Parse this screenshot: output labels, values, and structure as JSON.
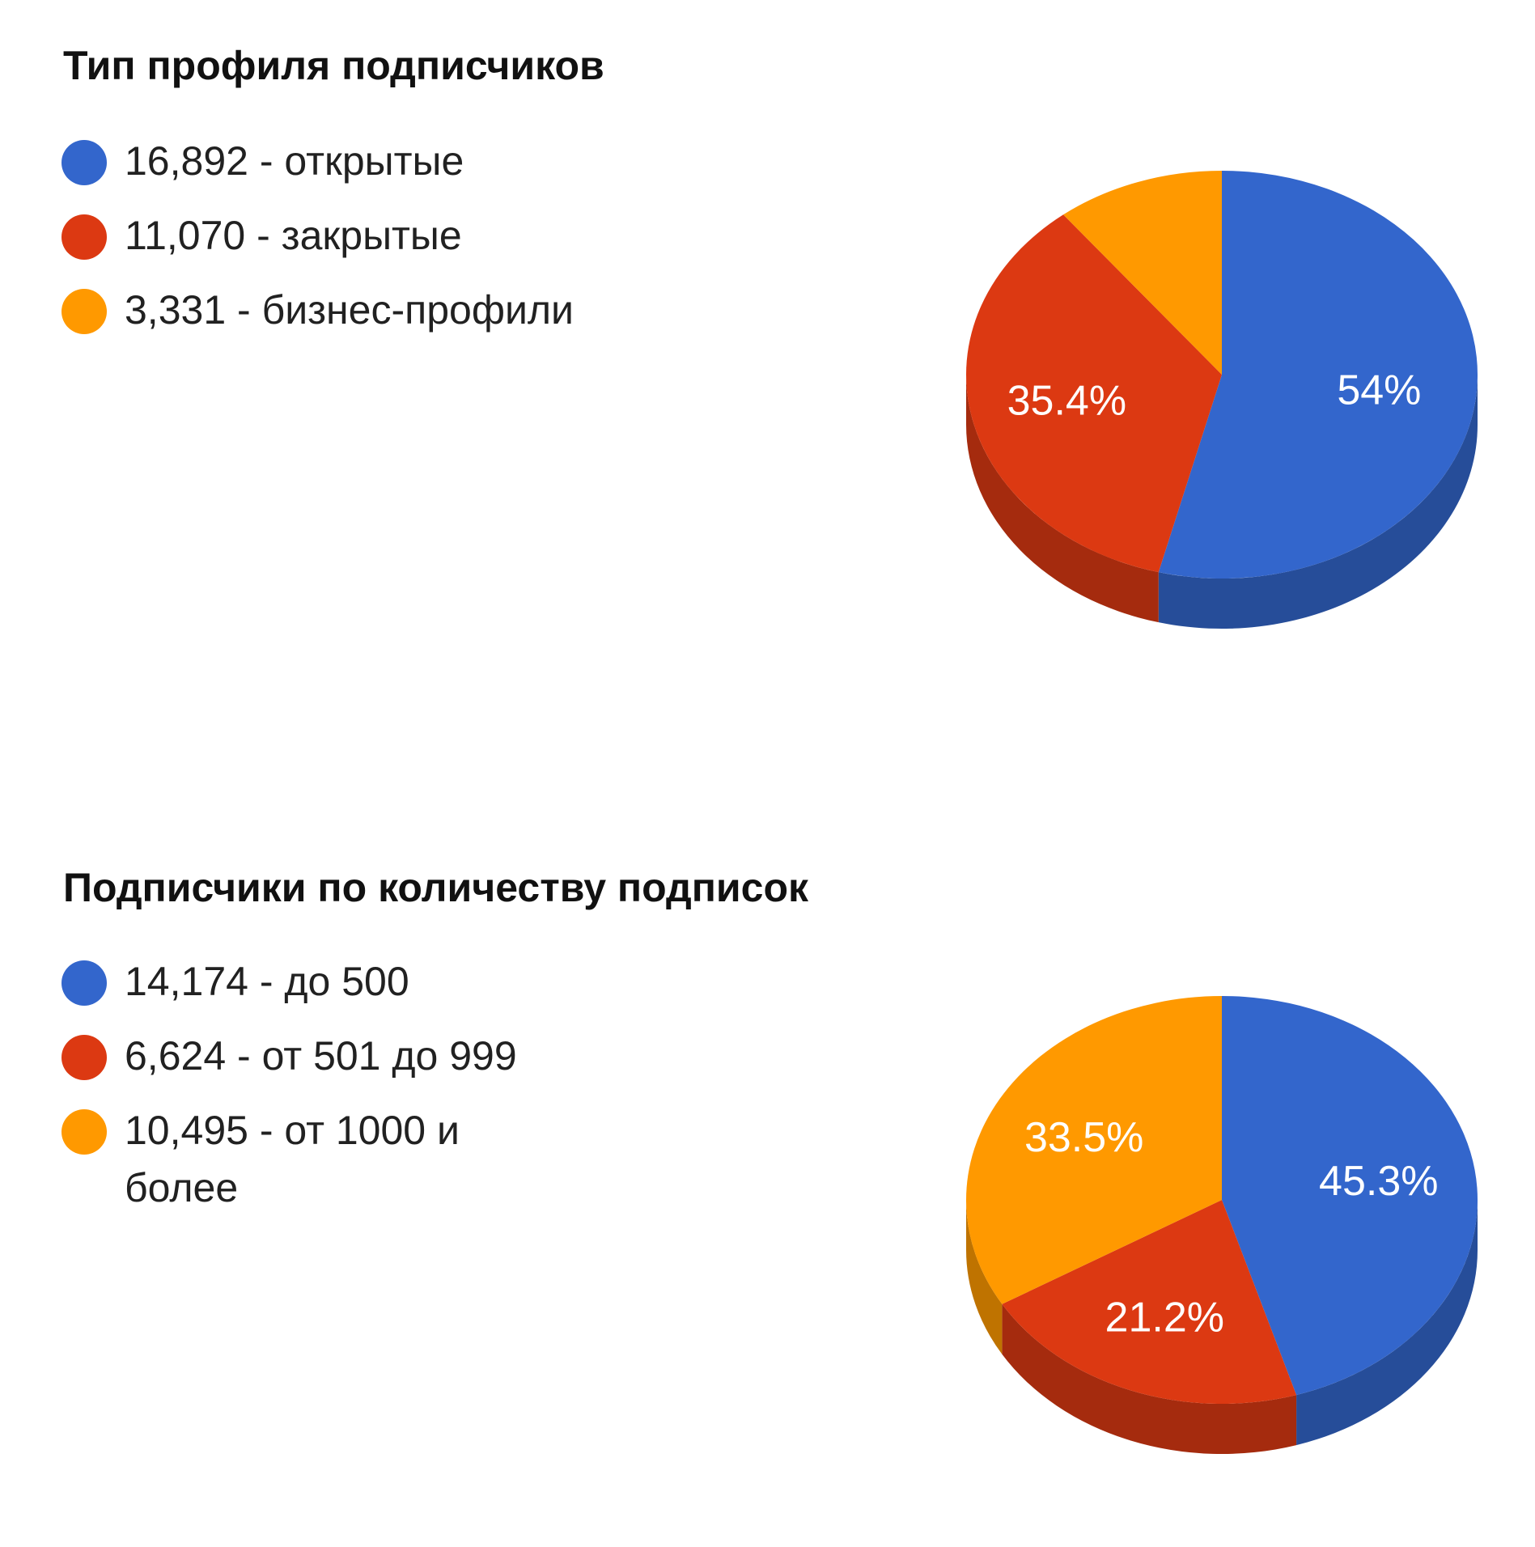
{
  "chart_data": [
    {
      "type": "pie",
      "title": "Тип профиля подписчиков",
      "slices": [
        {
          "legend_value": "16,892",
          "label": "открытые",
          "value": 16892,
          "percent_label": "54%",
          "color": "#3366cc",
          "side_color": "#264d99"
        },
        {
          "legend_value": "11,070",
          "label": "закрытые",
          "value": 11070,
          "percent_label": "35.4%",
          "color": "#dc3912",
          "side_color": "#a52b0e"
        },
        {
          "legend_value": "3,331",
          "label": "бизнес-профили",
          "value": 3331,
          "percent_label": "",
          "color": "#ff9900",
          "side_color": "#bf7300"
        }
      ],
      "legend_position": "left",
      "style": "3d"
    },
    {
      "type": "pie",
      "title": "Подписчики по количеству подписок",
      "slices": [
        {
          "legend_value": "14,174",
          "label": "до 500",
          "value": 14174,
          "percent_label": "45.3%",
          "color": "#3366cc",
          "side_color": "#264d99"
        },
        {
          "legend_value": "6,624",
          "label": "от 501 до 999",
          "value": 6624,
          "percent_label": "21.2%",
          "color": "#dc3912",
          "side_color": "#a52b0e"
        },
        {
          "legend_value": "10,495",
          "label": "от 1000 и более",
          "value": 10495,
          "percent_label": "33.5%",
          "color": "#ff9900",
          "side_color": "#bf7300"
        }
      ],
      "legend_position": "left",
      "style": "3d"
    }
  ]
}
